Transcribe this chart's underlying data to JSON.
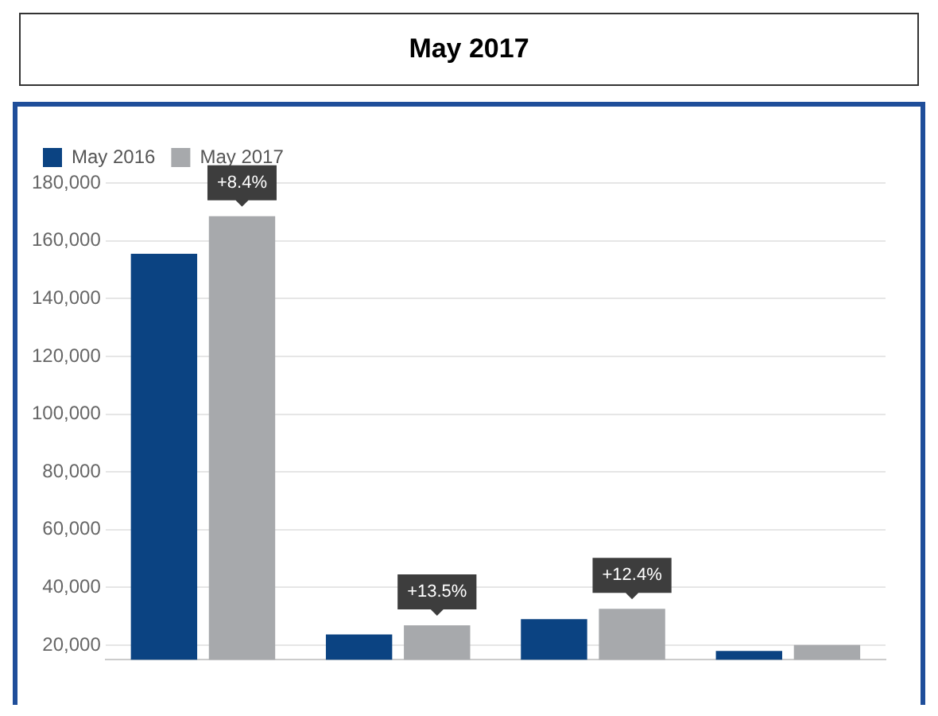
{
  "chart_data": {
    "type": "bar",
    "title": "May 2017",
    "categories": [
      null,
      null,
      null,
      null
    ],
    "series": [
      {
        "name": "May 2016",
        "color": "#0b4382",
        "values": [
          155500,
          23700,
          29000,
          18000
        ]
      },
      {
        "name": "May 2017",
        "color": "#a7a9ac",
        "values": [
          168500,
          26900,
          32600,
          20100
        ]
      }
    ],
    "annotations": [
      {
        "text": "+8.4%",
        "y": 168500
      },
      {
        "text": "+13.5%",
        "y": 26900
      },
      {
        "text": "+12.4%",
        "y": 32600
      }
    ],
    "ylim": [
      15000,
      180000
    ],
    "yticks": [
      {
        "value": 20000,
        "label": "20,000"
      },
      {
        "value": 40000,
        "label": "40,000"
      },
      {
        "value": 60000,
        "label": "60,000"
      },
      {
        "value": 80000,
        "label": "80,000"
      },
      {
        "value": 100000,
        "label": "100,000"
      },
      {
        "value": 120000,
        "label": "120,000"
      },
      {
        "value": 140000,
        "label": "140,000"
      },
      {
        "value": 160000,
        "label": "160,000"
      },
      {
        "value": 180000,
        "label": "180,000"
      }
    ],
    "grid": "y",
    "legend": "top left"
  }
}
